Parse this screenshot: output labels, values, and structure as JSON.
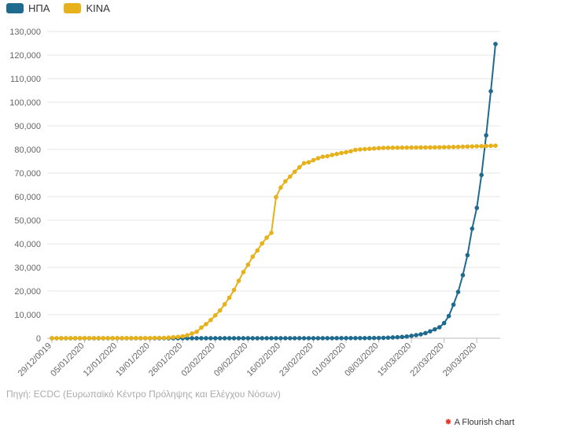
{
  "legend": [
    {
      "label": "ΗΠΑ",
      "color": "#1f6a8f"
    },
    {
      "label": "ΚΙΝΑ",
      "color": "#e6b11a"
    }
  ],
  "source": "Πηγή: ECDC (Ευρωπαϊκό Κέντρο Πρόληψης και Ελέγχου Νόσων)",
  "credit": "A Flourish chart",
  "chart_data": {
    "type": "line",
    "x_start": "29/12/2019",
    "x_tick_labels": [
      "29/12/0019",
      "05/01/2020",
      "12/01/2020",
      "19/01/2020",
      "26/01/2020",
      "02/02/2020",
      "09/02/2020",
      "16/02/2020",
      "23/02/2020",
      "01/03/2020",
      "08/03/2020",
      "15/03/2020",
      "22/03/2020",
      "29/03/2020"
    ],
    "y_tick_labels": [
      "0",
      "10,000",
      "20,000",
      "30,000",
      "40,000",
      "50,000",
      "60,000",
      "70,000",
      "80,000",
      "90,000",
      "100,000",
      "110,000",
      "120,000",
      "130,000"
    ],
    "ylim": [
      0,
      130000
    ],
    "grid": true,
    "legend_position": "top-left",
    "series": [
      {
        "name": "ΗΠΑ",
        "color": "#1f6a8f",
        "values": [
          0,
          0,
          0,
          0,
          0,
          0,
          0,
          0,
          0,
          0,
          0,
          0,
          0,
          0,
          0,
          0,
          0,
          0,
          0,
          0,
          0,
          0,
          1,
          1,
          2,
          2,
          5,
          5,
          5,
          5,
          6,
          7,
          8,
          8,
          11,
          11,
          11,
          12,
          12,
          12,
          12,
          12,
          13,
          13,
          14,
          15,
          15,
          15,
          15,
          15,
          15,
          15,
          15,
          15,
          15,
          15,
          15,
          15,
          35,
          35,
          35,
          53,
          53,
          59,
          60,
          62,
          64,
          69,
          89,
          103,
          125,
          159,
          233,
          338,
          433,
          554,
          754,
          1025,
          1312,
          1663,
          2174,
          2951,
          3774,
          4661,
          6427,
          9415,
          14250,
          19624,
          26747,
          35206,
          46442,
          55231,
          69194,
          85991,
          104686,
          124686
        ]
      },
      {
        "name": "ΚΙΝΑ",
        "color": "#e6b11a",
        "values": [
          27,
          27,
          27,
          44,
          44,
          59,
          59,
          59,
          59,
          59,
          59,
          59,
          59,
          59,
          59,
          59,
          59,
          59,
          59,
          59,
          59,
          59,
          131,
          149,
          131,
          259,
          440,
          571,
          830,
          1287,
          1975,
          2744,
          4515,
          5974,
          7711,
          9692,
          11791,
          14380,
          17205,
          20440,
          24324,
          28018,
          31161,
          34546,
          37198,
          40171,
          42638,
          44653,
          59804,
          63851,
          66492,
          68500,
          70548,
          72436,
          74185,
          74576,
          75465,
          76288,
          76936,
          77150,
          77658,
          78064,
          78497,
          78824,
          79251,
          79824,
          80026,
          80151,
          80270,
          80409,
          80552,
          80651,
          80695,
          80735,
          80754,
          80778,
          80793,
          80813,
          80824,
          80844,
          80860,
          80881,
          80894,
          80928,
          80967,
          81008,
          81054,
          81093,
          81171,
          81218,
          81285,
          81340,
          81394,
          81470,
          81548,
          81601
        ]
      }
    ]
  }
}
